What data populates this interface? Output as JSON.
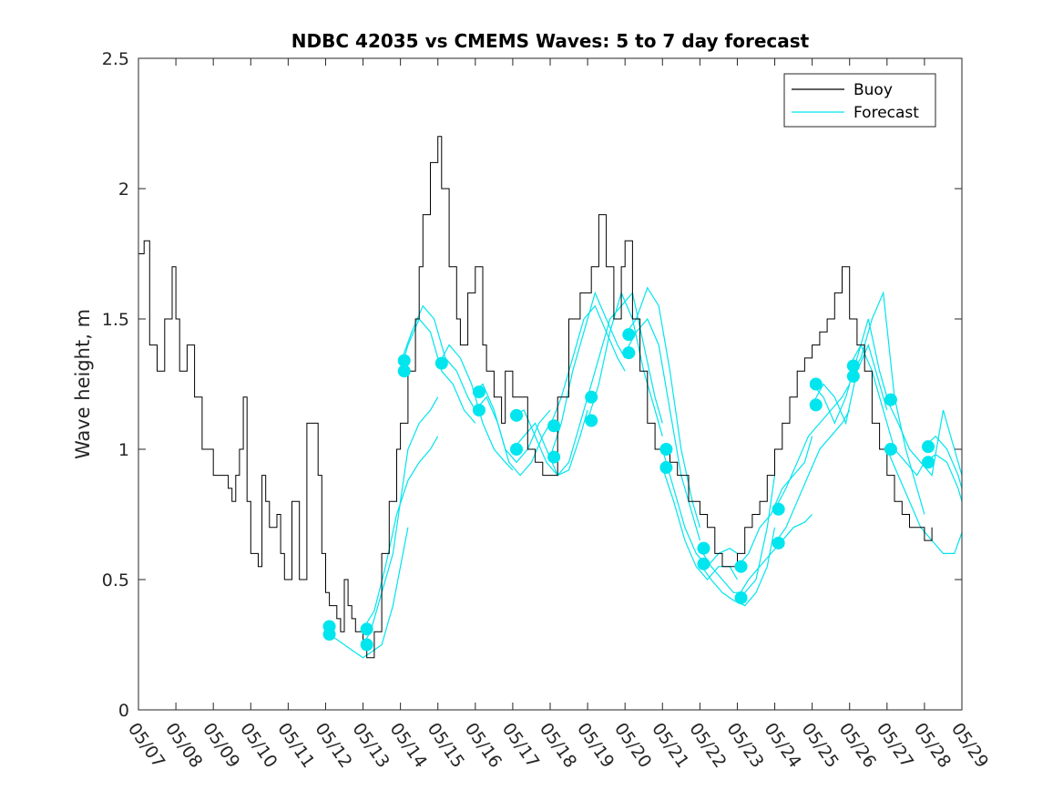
{
  "chart_data": {
    "type": "line",
    "title": "NDBC 42035 vs CMEMS Waves: 5 to 7 day forecast",
    "xlabel": "",
    "ylabel": "Wave height, m",
    "xlim": [
      0,
      22
    ],
    "ylim": [
      0,
      2.5
    ],
    "x_unit": "days since 05/07",
    "x_tick_labels": [
      "05/07",
      "05/08",
      "05/09",
      "05/10",
      "05/11",
      "05/12",
      "05/13",
      "05/14",
      "05/15",
      "05/16",
      "05/17",
      "05/18",
      "05/19",
      "05/20",
      "05/21",
      "05/22",
      "05/23",
      "05/24",
      "05/25",
      "05/26",
      "05/27",
      "05/28",
      "05/29"
    ],
    "y_ticks": [
      0,
      0.5,
      1,
      1.5,
      2,
      2.5
    ],
    "y_tick_labels": [
      "0",
      "0.5",
      "1",
      "1.5",
      "2",
      "2.5"
    ],
    "grid": false,
    "legend_position": "top-right",
    "legend": [
      "Buoy",
      "Forecast"
    ],
    "colors": {
      "buoy": "#000000",
      "forecast": "#00E5EE",
      "marker": "#00E5EE",
      "axis": "#262626"
    },
    "buoy": {
      "name": "Buoy",
      "x": [
        0,
        0.15,
        0.3,
        0.5,
        0.7,
        0.9,
        1.0,
        1.1,
        1.3,
        1.5,
        1.7,
        2.0,
        2.2,
        2.4,
        2.5,
        2.6,
        2.7,
        2.8,
        2.9,
        3.0,
        3.1,
        3.2,
        3.3,
        3.4,
        3.5,
        3.6,
        3.7,
        3.8,
        3.9,
        4.0,
        4.1,
        4.3,
        4.5,
        4.6,
        4.8,
        4.9,
        5.0,
        5.1,
        5.2,
        5.3,
        5.4,
        5.5,
        5.6,
        5.7,
        5.8,
        5.9,
        6.0,
        6.1,
        6.2,
        6.3,
        6.5,
        6.7,
        6.8,
        6.9,
        7.0,
        7.2,
        7.4,
        7.5,
        7.6,
        7.8,
        8.0,
        8.1,
        8.3,
        8.5,
        8.6,
        8.8,
        9.0,
        9.2,
        9.3,
        9.5,
        9.7,
        9.8,
        10.0,
        10.2,
        10.4,
        10.6,
        10.8,
        11.0,
        11.2,
        11.5,
        11.8,
        12.0,
        12.1,
        12.3,
        12.5,
        12.7,
        12.9,
        13.0,
        13.2,
        13.4,
        13.6,
        13.8,
        14.0,
        14.2,
        14.4,
        14.6,
        14.7,
        14.9,
        15.0,
        15.2,
        15.4,
        15.6,
        15.8,
        16.0,
        16.2,
        16.4,
        16.6,
        16.8,
        17.0,
        17.2,
        17.4,
        17.6,
        17.8,
        18.0,
        18.2,
        18.4,
        18.6,
        18.8,
        19.0,
        19.2,
        19.4,
        19.6,
        19.8,
        20.0,
        20.2,
        20.4,
        20.6,
        20.8,
        21.0,
        21.2
      ],
      "values": [
        1.75,
        1.8,
        1.4,
        1.3,
        1.5,
        1.7,
        1.5,
        1.3,
        1.4,
        1.2,
        1.0,
        0.9,
        0.9,
        0.85,
        0.8,
        0.9,
        1.0,
        1.2,
        0.8,
        0.6,
        0.6,
        0.55,
        0.9,
        0.8,
        0.7,
        0.7,
        0.75,
        0.6,
        0.5,
        0.5,
        0.8,
        0.5,
        1.1,
        1.1,
        0.9,
        0.6,
        0.45,
        0.4,
        0.4,
        0.35,
        0.3,
        0.5,
        0.4,
        0.35,
        0.3,
        0.3,
        0.25,
        0.2,
        0.2,
        0.3,
        0.6,
        0.8,
        0.8,
        1.0,
        1.1,
        1.3,
        1.5,
        1.7,
        1.9,
        2.1,
        2.2,
        2.0,
        1.7,
        1.5,
        1.4,
        1.6,
        1.7,
        1.4,
        1.3,
        1.2,
        1.1,
        1.3,
        1.2,
        1.2,
        1.0,
        0.95,
        0.9,
        0.9,
        1.2,
        1.5,
        1.6,
        1.6,
        1.7,
        1.9,
        1.7,
        1.5,
        1.7,
        1.8,
        1.5,
        1.3,
        1.1,
        1.0,
        1.0,
        0.95,
        0.9,
        0.9,
        0.8,
        0.8,
        0.75,
        0.7,
        0.6,
        0.55,
        0.55,
        0.6,
        0.7,
        0.75,
        0.8,
        0.9,
        1.0,
        1.1,
        1.2,
        1.3,
        1.35,
        1.4,
        1.45,
        1.5,
        1.6,
        1.7,
        1.5,
        1.4,
        1.3,
        1.1,
        1.0,
        0.9,
        0.8,
        0.75,
        0.7,
        0.7,
        0.65,
        0.7
      ]
    },
    "forecast_runs": [
      {
        "x": [
          5.0,
          5.3,
          5.6,
          5.8,
          6.0,
          6.2,
          6.5,
          6.8,
          7.0,
          7.2
        ],
        "values": [
          0.3,
          0.27,
          0.24,
          0.22,
          0.2,
          0.22,
          0.25,
          0.4,
          0.55,
          0.7
        ]
      },
      {
        "x": [
          6.0,
          6.3,
          6.6,
          6.9,
          7.2,
          7.5,
          7.8,
          8.0
        ],
        "values": [
          0.31,
          0.38,
          0.55,
          0.75,
          0.88,
          0.95,
          1.0,
          1.05
        ]
      },
      {
        "x": [
          6.0,
          6.2,
          6.5,
          6.8,
          7.0,
          7.2,
          7.5,
          7.8,
          8.0
        ],
        "values": [
          0.25,
          0.3,
          0.45,
          0.6,
          0.8,
          1.0,
          1.1,
          1.15,
          1.2
        ]
      },
      {
        "x": [
          7.0,
          7.3,
          7.6,
          7.9,
          8.2,
          8.5,
          8.8,
          9.0
        ],
        "values": [
          1.33,
          1.45,
          1.55,
          1.5,
          1.35,
          1.3,
          1.2,
          1.15
        ]
      },
      {
        "x": [
          7.0,
          7.2,
          7.5,
          7.8,
          8.1,
          8.4,
          8.7,
          9.0
        ],
        "values": [
          1.3,
          1.4,
          1.5,
          1.45,
          1.3,
          1.25,
          1.15,
          1.1
        ]
      },
      {
        "x": [
          8.0,
          8.3,
          8.6,
          8.9,
          9.2,
          9.5,
          9.8,
          10.0
        ],
        "values": [
          1.32,
          1.4,
          1.35,
          1.25,
          1.1,
          1.0,
          0.95,
          0.92
        ]
      },
      {
        "x": [
          9.0,
          9.2,
          9.5,
          9.8,
          10.1,
          10.4,
          10.7,
          11.0
        ],
        "values": [
          1.22,
          1.25,
          1.15,
          1.0,
          0.95,
          1.0,
          1.1,
          1.15
        ]
      },
      {
        "x": [
          9.0,
          9.3,
          9.6,
          9.9,
          10.2,
          10.5,
          10.8,
          11.0
        ],
        "values": [
          1.15,
          1.2,
          1.1,
          0.95,
          0.9,
          0.95,
          1.05,
          1.1
        ]
      },
      {
        "x": [
          10.0,
          10.3,
          10.6,
          10.9,
          11.2,
          11.5,
          11.8,
          12.0
        ],
        "values": [
          1.13,
          1.15,
          1.05,
          0.95,
          0.9,
          0.95,
          1.1,
          1.2
        ]
      },
      {
        "x": [
          10.0,
          10.3,
          10.6,
          10.9,
          11.2,
          11.5,
          11.8,
          12.0
        ],
        "values": [
          1.0,
          1.05,
          1.1,
          1.0,
          0.9,
          0.92,
          1.05,
          1.15
        ]
      },
      {
        "x": [
          11.0,
          11.3,
          11.6,
          11.9,
          12.2,
          12.5,
          12.8,
          13.0
        ],
        "values": [
          1.09,
          1.2,
          1.35,
          1.5,
          1.55,
          1.45,
          1.35,
          1.3
        ]
      },
      {
        "x": [
          11.0,
          11.3,
          11.6,
          11.9,
          12.2,
          12.5,
          12.8,
          13.0
        ],
        "values": [
          0.97,
          1.1,
          1.3,
          1.45,
          1.6,
          1.5,
          1.4,
          1.35
        ]
      },
      {
        "x": [
          12.0,
          12.3,
          12.6,
          12.9,
          13.2,
          13.5,
          13.8,
          14.0
        ],
        "values": [
          1.2,
          1.35,
          1.5,
          1.55,
          1.6,
          1.4,
          1.2,
          1.1
        ]
      },
      {
        "x": [
          12.0,
          12.3,
          12.6,
          12.9,
          13.2,
          13.5,
          13.8,
          14.0
        ],
        "values": [
          1.11,
          1.25,
          1.45,
          1.6,
          1.5,
          1.3,
          1.15,
          1.05
        ]
      },
      {
        "x": [
          13.0,
          13.3,
          13.6,
          13.9,
          14.2,
          14.5,
          14.8,
          15.0
        ],
        "values": [
          1.44,
          1.5,
          1.62,
          1.55,
          1.3,
          1.0,
          0.8,
          0.7
        ]
      },
      {
        "x": [
          13.0,
          13.3,
          13.6,
          13.9,
          14.2,
          14.5,
          14.8,
          15.0
        ],
        "values": [
          1.37,
          1.45,
          1.5,
          1.4,
          1.15,
          0.9,
          0.75,
          0.65
        ]
      },
      {
        "x": [
          14.0,
          14.3,
          14.6,
          14.9,
          15.2,
          15.5,
          15.8,
          16.0
        ],
        "values": [
          1.0,
          0.85,
          0.7,
          0.6,
          0.55,
          0.6,
          0.62,
          0.6
        ]
      },
      {
        "x": [
          14.0,
          14.3,
          14.6,
          14.9,
          15.2,
          15.5,
          15.8,
          16.0
        ],
        "values": [
          0.93,
          0.8,
          0.65,
          0.55,
          0.5,
          0.55,
          0.55,
          0.5
        ]
      },
      {
        "x": [
          15.0,
          15.3,
          15.6,
          15.9,
          16.2,
          16.5,
          16.8,
          17.0
        ],
        "values": [
          0.62,
          0.55,
          0.5,
          0.45,
          0.45,
          0.5,
          0.7,
          0.9
        ]
      },
      {
        "x": [
          15.0,
          15.3,
          15.6,
          15.9,
          16.2,
          16.5,
          16.8,
          17.0
        ],
        "values": [
          0.56,
          0.5,
          0.45,
          0.42,
          0.4,
          0.45,
          0.55,
          0.7
        ]
      },
      {
        "x": [
          16.0,
          16.3,
          16.6,
          16.9,
          17.2,
          17.5,
          17.8,
          18.0
        ],
        "values": [
          0.55,
          0.6,
          0.7,
          0.75,
          0.85,
          0.9,
          0.95,
          1.05
        ]
      },
      {
        "x": [
          16.0,
          16.3,
          16.6,
          16.9,
          17.2,
          17.5,
          17.8,
          18.0
        ],
        "values": [
          0.43,
          0.5,
          0.55,
          0.6,
          0.65,
          0.7,
          0.72,
          0.75
        ]
      },
      {
        "x": [
          17.0,
          17.3,
          17.6,
          17.9,
          18.2,
          18.5,
          18.8,
          19.0
        ],
        "values": [
          0.77,
          0.85,
          0.95,
          1.05,
          1.1,
          1.15,
          1.2,
          1.25
        ]
      },
      {
        "x": [
          17.0,
          17.3,
          17.6,
          17.9,
          18.2,
          18.5,
          18.8,
          19.0
        ],
        "values": [
          0.64,
          0.7,
          0.8,
          0.9,
          1.0,
          1.05,
          1.1,
          1.15
        ]
      },
      {
        "x": [
          18.0,
          18.3,
          18.6,
          18.9,
          19.2,
          19.5,
          19.8,
          20.0
        ],
        "values": [
          1.25,
          1.2,
          1.1,
          1.2,
          1.35,
          1.5,
          1.3,
          1.2
        ]
      },
      {
        "x": [
          18.0,
          18.3,
          18.6,
          18.9,
          19.2,
          19.5,
          19.8,
          20.0
        ],
        "values": [
          1.17,
          1.25,
          1.2,
          1.1,
          1.3,
          1.4,
          1.25,
          1.15
        ]
      },
      {
        "x": [
          19.0,
          19.3,
          19.6,
          19.9,
          20.2,
          20.5,
          20.8,
          21.0
        ],
        "values": [
          1.32,
          1.4,
          1.3,
          1.15,
          1.0,
          0.95,
          0.9,
          0.95
        ]
      },
      {
        "x": [
          19.0,
          19.3,
          19.6,
          19.9,
          20.2,
          20.5,
          20.8,
          21.0
        ],
        "values": [
          1.28,
          1.35,
          1.5,
          1.6,
          1.2,
          1.0,
          0.85,
          0.75
        ]
      },
      {
        "x": [
          20.0,
          20.3,
          20.6,
          20.9,
          21.2,
          21.5,
          21.8,
          22.0
        ],
        "values": [
          1.19,
          1.1,
          1.0,
          0.95,
          0.9,
          1.15,
          1.0,
          0.9
        ]
      },
      {
        "x": [
          20.0,
          20.3,
          20.6,
          20.9,
          21.2,
          21.5,
          21.8,
          22.0
        ],
        "values": [
          1.0,
          0.9,
          0.8,
          0.7,
          0.65,
          0.6,
          0.6,
          0.68
        ]
      },
      {
        "x": [
          21.0,
          21.3,
          21.6,
          21.9,
          22.0
        ],
        "values": [
          1.01,
          1.05,
          1.0,
          0.9,
          0.85
        ]
      },
      {
        "x": [
          21.0,
          21.3,
          21.6,
          21.9,
          22.0
        ],
        "values": [
          0.95,
          0.98,
          0.95,
          0.85,
          0.8
        ]
      }
    ],
    "forecast_markers": {
      "x": [
        5.1,
        5.1,
        6.1,
        6.1,
        7.1,
        7.1,
        8.1,
        9.1,
        9.1,
        10.1,
        10.1,
        11.1,
        11.1,
        12.1,
        12.1,
        13.1,
        13.1,
        14.1,
        14.1,
        15.1,
        15.1,
        16.1,
        16.1,
        17.1,
        17.1,
        18.1,
        18.1,
        19.1,
        19.1,
        20.1,
        20.1,
        21.1,
        21.1
      ],
      "values": [
        0.32,
        0.29,
        0.31,
        0.25,
        1.34,
        1.3,
        1.33,
        1.22,
        1.15,
        1.13,
        1.0,
        1.09,
        0.97,
        1.2,
        1.11,
        1.44,
        1.37,
        1.0,
        0.93,
        0.62,
        0.56,
        0.55,
        0.43,
        0.77,
        0.64,
        1.25,
        1.17,
        1.32,
        1.28,
        1.19,
        1.0,
        1.01,
        0.95
      ]
    }
  }
}
